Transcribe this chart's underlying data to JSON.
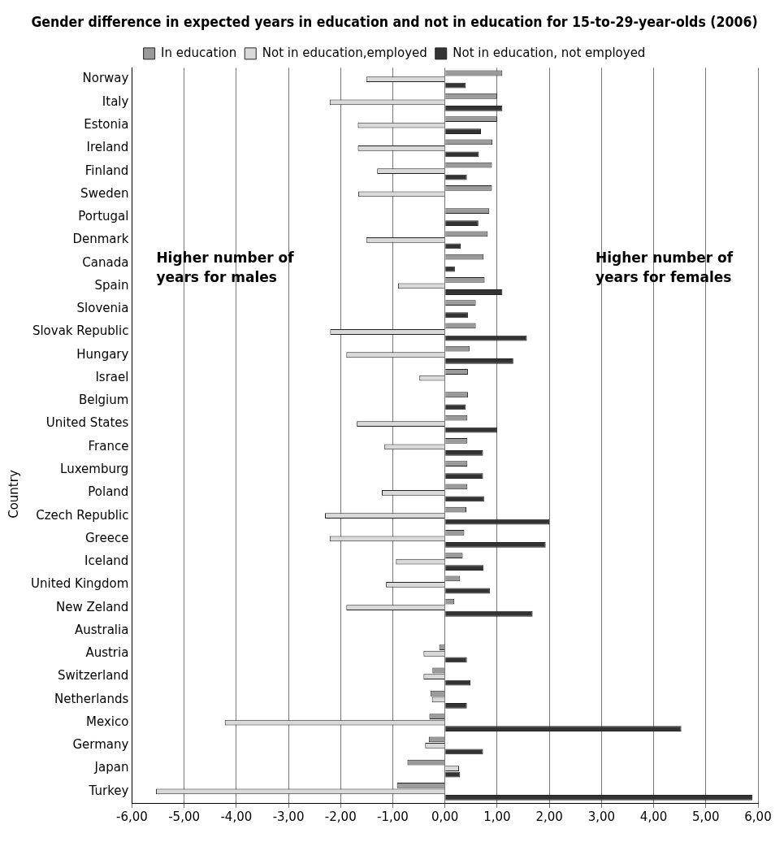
{
  "chart_data": {
    "type": "bar",
    "orientation": "horizontal",
    "title": "Gender difference in expected years in education and not in education for 15-to-29-year-olds (2006)",
    "ylabel": "Country",
    "categories": [
      "Norway",
      "Italy",
      "Estonia",
      "Ireland",
      "Finland",
      "Sweden",
      "Portugal",
      "Denmark",
      "Canada",
      "Spain",
      "Slovenia",
      "Slovak Republic",
      "Hungary",
      "Israel",
      "Belgium",
      "United States",
      "France",
      "Luxemburg",
      "Poland",
      "Czech Republic",
      "Greece",
      "Iceland",
      "United Kingdom",
      "New Zeland",
      "Australia",
      "Austria",
      "Switzerland",
      "Netherlands",
      "Mexico",
      "Germany",
      "Japan",
      "Turkey"
    ],
    "series": [
      {
        "name": "In education",
        "color": "#9a9a9a",
        "values": [
          1.1,
          1.0,
          1.0,
          0.91,
          0.9,
          0.9,
          0.85,
          0.82,
          0.74,
          0.76,
          0.59,
          0.59,
          0.47,
          0.44,
          0.44,
          0.43,
          0.43,
          0.43,
          0.43,
          0.41,
          0.37,
          0.34,
          0.29,
          0.18,
          0,
          -0.11,
          -0.24,
          -0.28,
          -0.3,
          -0.31,
          -0.72,
          -0.92
        ]
      },
      {
        "name": "Not in education,employed",
        "color": "#d9d9d9",
        "values": [
          -1.51,
          -2.21,
          -1.67,
          -1.67,
          -1.3,
          -1.66,
          null,
          -1.51,
          null,
          -0.9,
          null,
          -2.2,
          -1.89,
          -0.49,
          null,
          -1.69,
          -1.16,
          null,
          -1.21,
          -2.3,
          -2.21,
          -0.94,
          -1.13,
          -1.89,
          0,
          -0.41,
          -0.41,
          -0.25,
          -4.22,
          -0.38,
          0.27,
          -5.54
        ]
      },
      {
        "name": "Not in education, not employed",
        "color": "#333333",
        "values": [
          0.4,
          1.1,
          0.69,
          0.65,
          0.42,
          0,
          0.64,
          0.3,
          0.19,
          1.1,
          0.44,
          1.57,
          1.31,
          0,
          0.4,
          1.0,
          0.73,
          0.73,
          0.75,
          2.0,
          1.93,
          0.74,
          0.86,
          1.68,
          0,
          0.42,
          0.49,
          0.42,
          4.53,
          0.73,
          0.29,
          5.89
        ]
      }
    ],
    "xlim": [
      -6,
      6
    ],
    "xticks": [
      {
        "value": -6,
        "label": "-6,00"
      },
      {
        "value": -5,
        "label": "-5,00"
      },
      {
        "value": -4,
        "label": "-4,00"
      },
      {
        "value": -3,
        "label": "-3,00"
      },
      {
        "value": -2,
        "label": "-2,00"
      },
      {
        "value": -1,
        "label": "-1,00"
      },
      {
        "value": 0,
        "label": "0,00"
      },
      {
        "value": 1,
        "label": "1,00"
      },
      {
        "value": 2,
        "label": "2,00"
      },
      {
        "value": 3,
        "label": "3,00"
      },
      {
        "value": 4,
        "label": "4,00"
      },
      {
        "value": 5,
        "label": "5,00"
      },
      {
        "value": 6,
        "label": "6,00"
      }
    ],
    "grid": "x",
    "legend": "top",
    "annotations": [
      "Higher number of years for males",
      "Higher number of years for females"
    ]
  }
}
